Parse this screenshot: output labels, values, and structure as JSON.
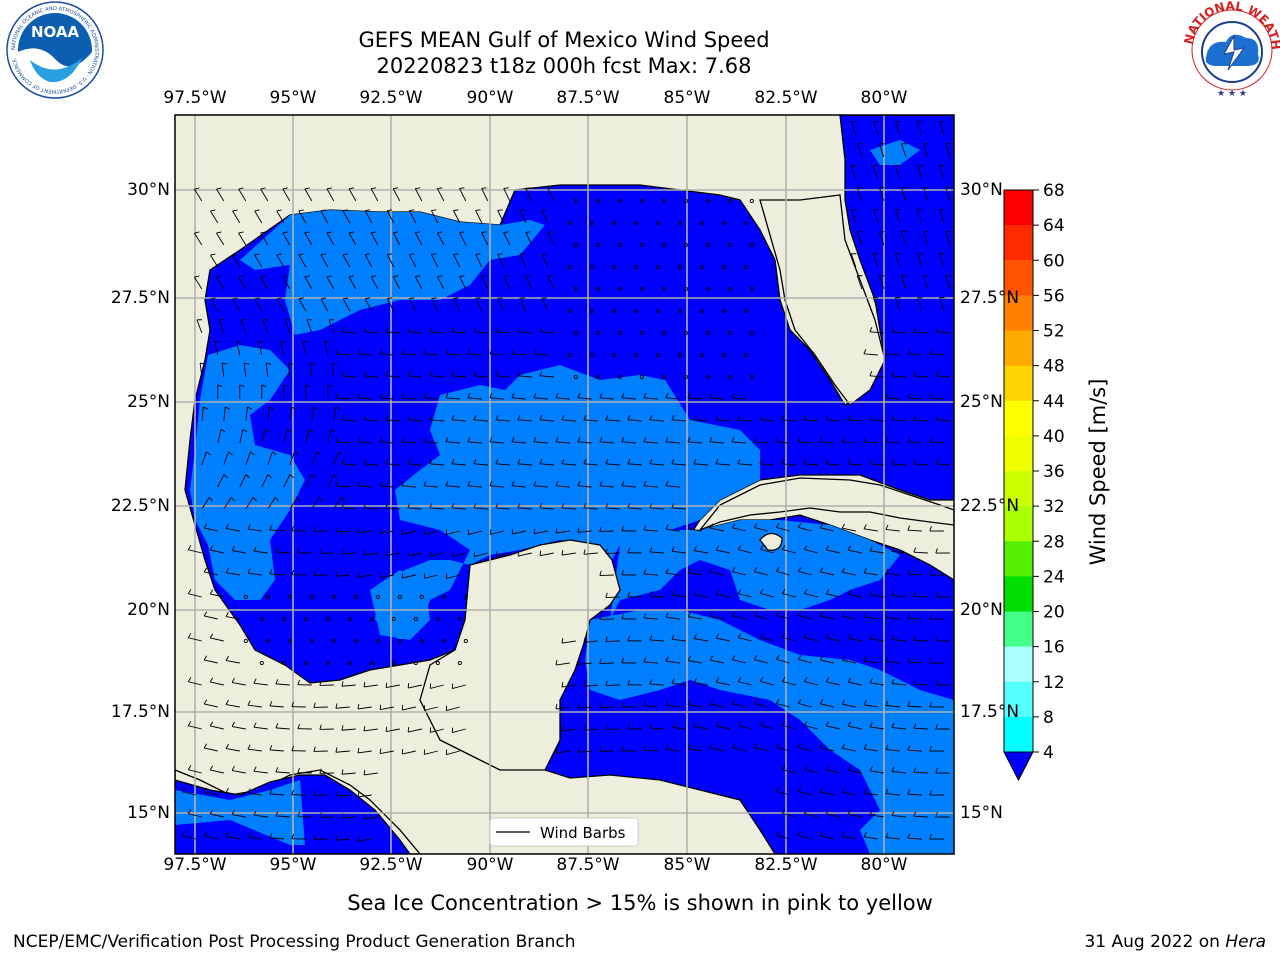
{
  "header": {
    "title_line1": "GEFS MEAN Gulf of Mexico Wind Speed",
    "title_line2": "20220823 t18z 000h fcst   Max: 7.68"
  },
  "logos": {
    "left": {
      "icon": "noaa-logo-icon",
      "text": "NOAA",
      "ring_text": "NATIONAL OCEANIC AND ATMOSPHERIC ADMINISTRATION · U.S. DEPARTMENT OF COMMERCE"
    },
    "right": {
      "icon": "nws-logo-icon",
      "ring_text": "NATIONAL WEATHER SERVICE"
    }
  },
  "map": {
    "region": "Gulf of Mexico",
    "lon_labels": [
      "97.5°W",
      "95°W",
      "92.5°W",
      "90°W",
      "87.5°W",
      "85°W",
      "82.5°W",
      "80°W"
    ],
    "lat_labels": [
      "30°N",
      "27.5°N",
      "25°N",
      "22.5°N",
      "20°N",
      "17.5°N",
      "15°N"
    ],
    "legend_label": "Wind Barbs",
    "colors": {
      "land": "#eeeedc",
      "ocean_low": "#0000ff",
      "ocean_mid": "#0080ff",
      "grid": "#b0b0b0"
    }
  },
  "colorbar": {
    "label": "Wind Speed [m/s]",
    "ticks": [
      "68",
      "64",
      "60",
      "56",
      "52",
      "48",
      "44",
      "40",
      "36",
      "32",
      "28",
      "24",
      "20",
      "16",
      "12",
      "8",
      "4"
    ],
    "colors": [
      "#ff0000",
      "#ff2a00",
      "#ff5500",
      "#ff7f00",
      "#ffaa00",
      "#ffd400",
      "#ffff00",
      "#eeff00",
      "#ccff00",
      "#aaff00",
      "#55ee00",
      "#00dd00",
      "#44ff88",
      "#aaffff",
      "#55ffff",
      "#00ffff",
      "#00e5ff",
      "#0080ff"
    ],
    "extend_color": "#0000ff"
  },
  "note": "Sea Ice Concentration > 15% is shown in pink to yellow",
  "footer": {
    "left": "NCEP/EMC/Verification Post Processing Product Generation Branch",
    "right_date": "31 Aug 2022 on ",
    "right_machine": "Hera"
  }
}
